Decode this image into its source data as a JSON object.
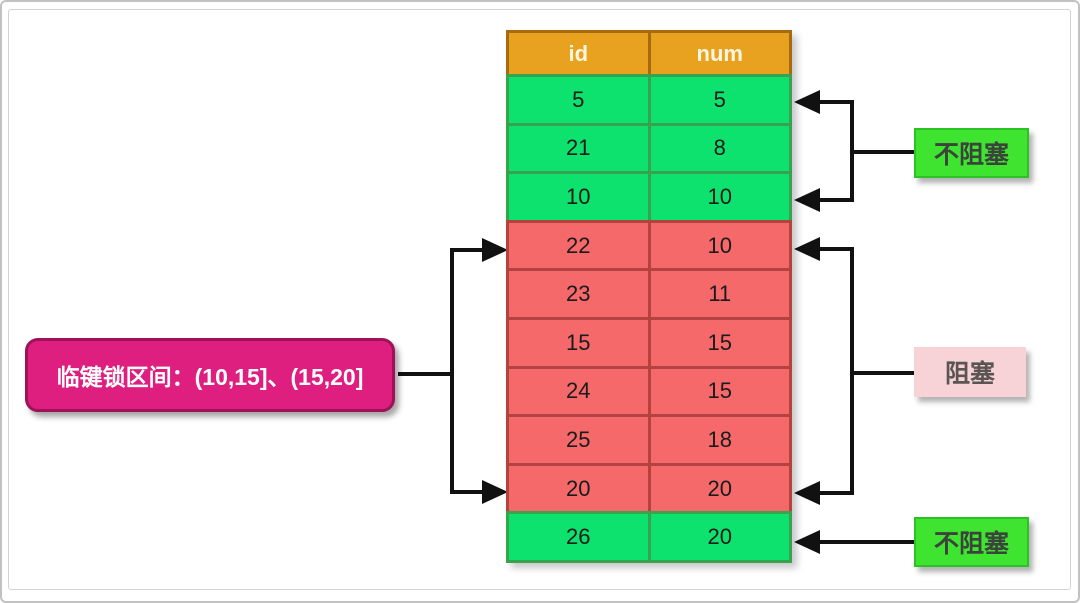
{
  "diagram": {
    "table": {
      "columns": [
        "id",
        "num"
      ],
      "rows": [
        {
          "id": "5",
          "num": "5",
          "state": "free"
        },
        {
          "id": "21",
          "num": "8",
          "state": "free"
        },
        {
          "id": "10",
          "num": "10",
          "state": "free"
        },
        {
          "id": "22",
          "num": "10",
          "state": "locked"
        },
        {
          "id": "23",
          "num": "11",
          "state": "locked"
        },
        {
          "id": "15",
          "num": "15",
          "state": "locked"
        },
        {
          "id": "24",
          "num": "15",
          "state": "locked"
        },
        {
          "id": "25",
          "num": "18",
          "state": "locked"
        },
        {
          "id": "20",
          "num": "20",
          "state": "locked"
        },
        {
          "id": "26",
          "num": "20",
          "state": "free"
        }
      ]
    },
    "annotations": {
      "lock_range_label": "临键锁区间：(10,15]、(15,20]",
      "top_right_label": "不阻塞",
      "middle_right_label": "阻塞",
      "bottom_right_label": "不阻塞"
    },
    "colors": {
      "header_bg": "#E8A21F",
      "free_row_bg": "#0EE26E",
      "locked_row_bg": "#F5696B",
      "lock_label_bg": "#DE1F80",
      "non_blocking_label_bg": "#3FE431",
      "blocking_label_bg": "#F7D3D7",
      "arrow": "#111111"
    }
  }
}
